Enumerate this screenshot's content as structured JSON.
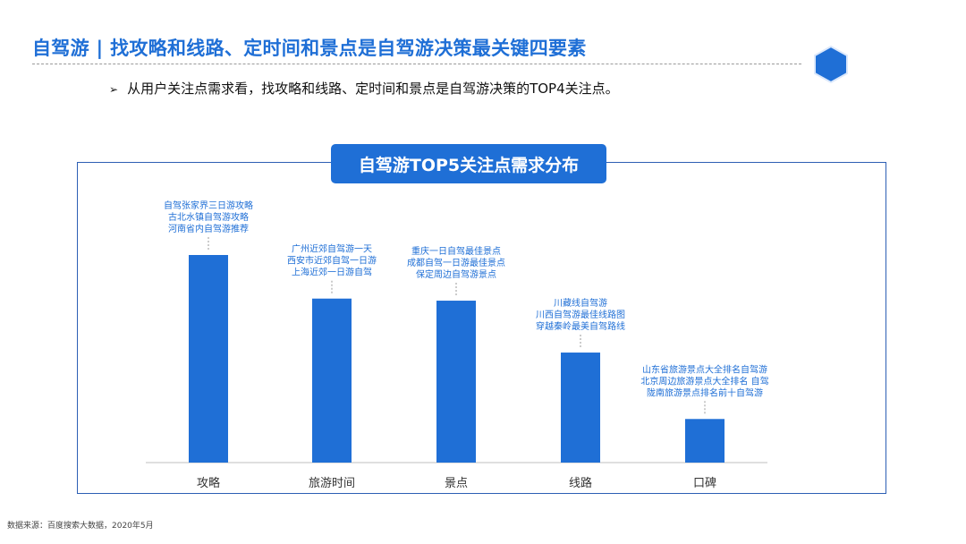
{
  "page": {
    "title": "自驾游 | 找攻略和线路、定时间和景点是自驾游决策最关键四要素",
    "bullet": "从用户关注点需求看，找攻略和线路、定时间和景点是自驾游决策的TOP4关注点。",
    "bullet_marker": "➢",
    "source": "数据来源：百度搜索大数据，2020年5月",
    "colors": {
      "accent": "#1f6fd6",
      "bar": "#1f6fd6",
      "panel_border": "#2d5fb4"
    }
  },
  "chart_data": {
    "type": "bar",
    "title": "自驾游TOP5关注点需求分布",
    "categories": [
      "攻略",
      "旅游时间",
      "景点",
      "线路",
      "口碑"
    ],
    "values": [
      100,
      79,
      78,
      53,
      21
    ],
    "ylim": [
      0,
      100
    ],
    "grid": false,
    "annotations": [
      [
        "自驾张家界三日游攻略",
        "古北水镇自驾游攻略",
        "河南省内自驾游推荐"
      ],
      [
        "广州近郊自驾游一天",
        "西安市近郊自驾一日游",
        "上海近郊一日游自驾"
      ],
      [
        "重庆一日自驾最佳景点",
        "成都自驾一日游最佳景点",
        "保定周边自驾游景点"
      ],
      [
        "川藏线自驾游",
        "川西自驾游最佳线路图",
        "穿越秦岭最美自驾路线"
      ],
      [
        "山东省旅游景点大全排名自驾游",
        "北京周边旅游景点大全排名 自驾",
        "陇南旅游景点排名前十自驾游"
      ]
    ]
  }
}
